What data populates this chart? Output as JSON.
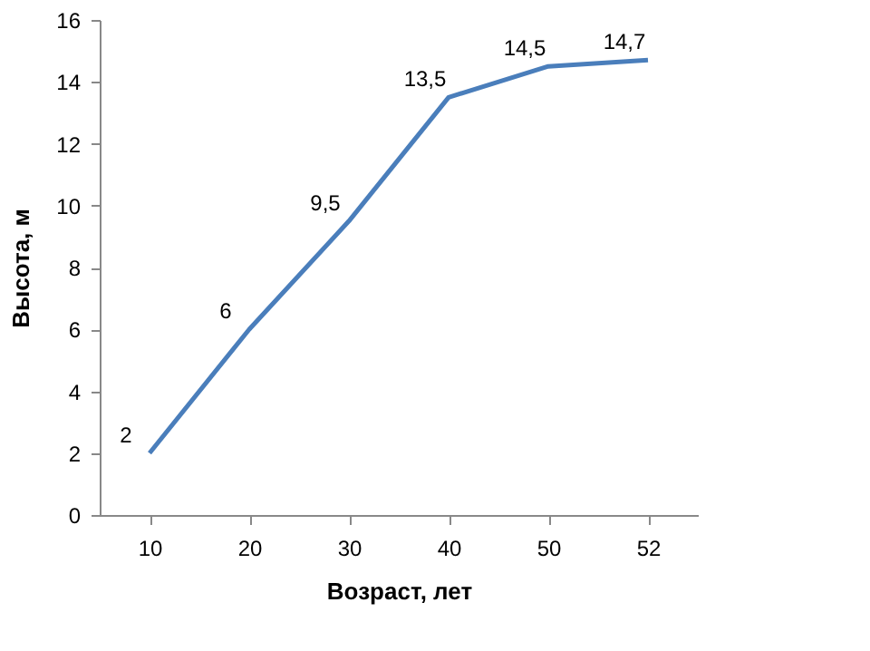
{
  "chart_data": {
    "type": "line",
    "xlabel": "Возраст, лет",
    "ylabel": "Высота, м",
    "categories": [
      "10",
      "20",
      "30",
      "40",
      "50",
      "52"
    ],
    "series": [
      {
        "color": "#4a7ebb",
        "values": [
          2,
          6,
          9.5,
          13.5,
          14.5,
          14.7
        ],
        "value_labels": [
          "2",
          "6",
          "9,5",
          "13,5",
          "14,5",
          "14,7"
        ]
      }
    ],
    "ylim": [
      0,
      16
    ],
    "yticks": [
      0,
      2,
      4,
      6,
      8,
      10,
      12,
      14,
      16
    ],
    "grid": false,
    "marker": "none",
    "line_style": "solid"
  }
}
